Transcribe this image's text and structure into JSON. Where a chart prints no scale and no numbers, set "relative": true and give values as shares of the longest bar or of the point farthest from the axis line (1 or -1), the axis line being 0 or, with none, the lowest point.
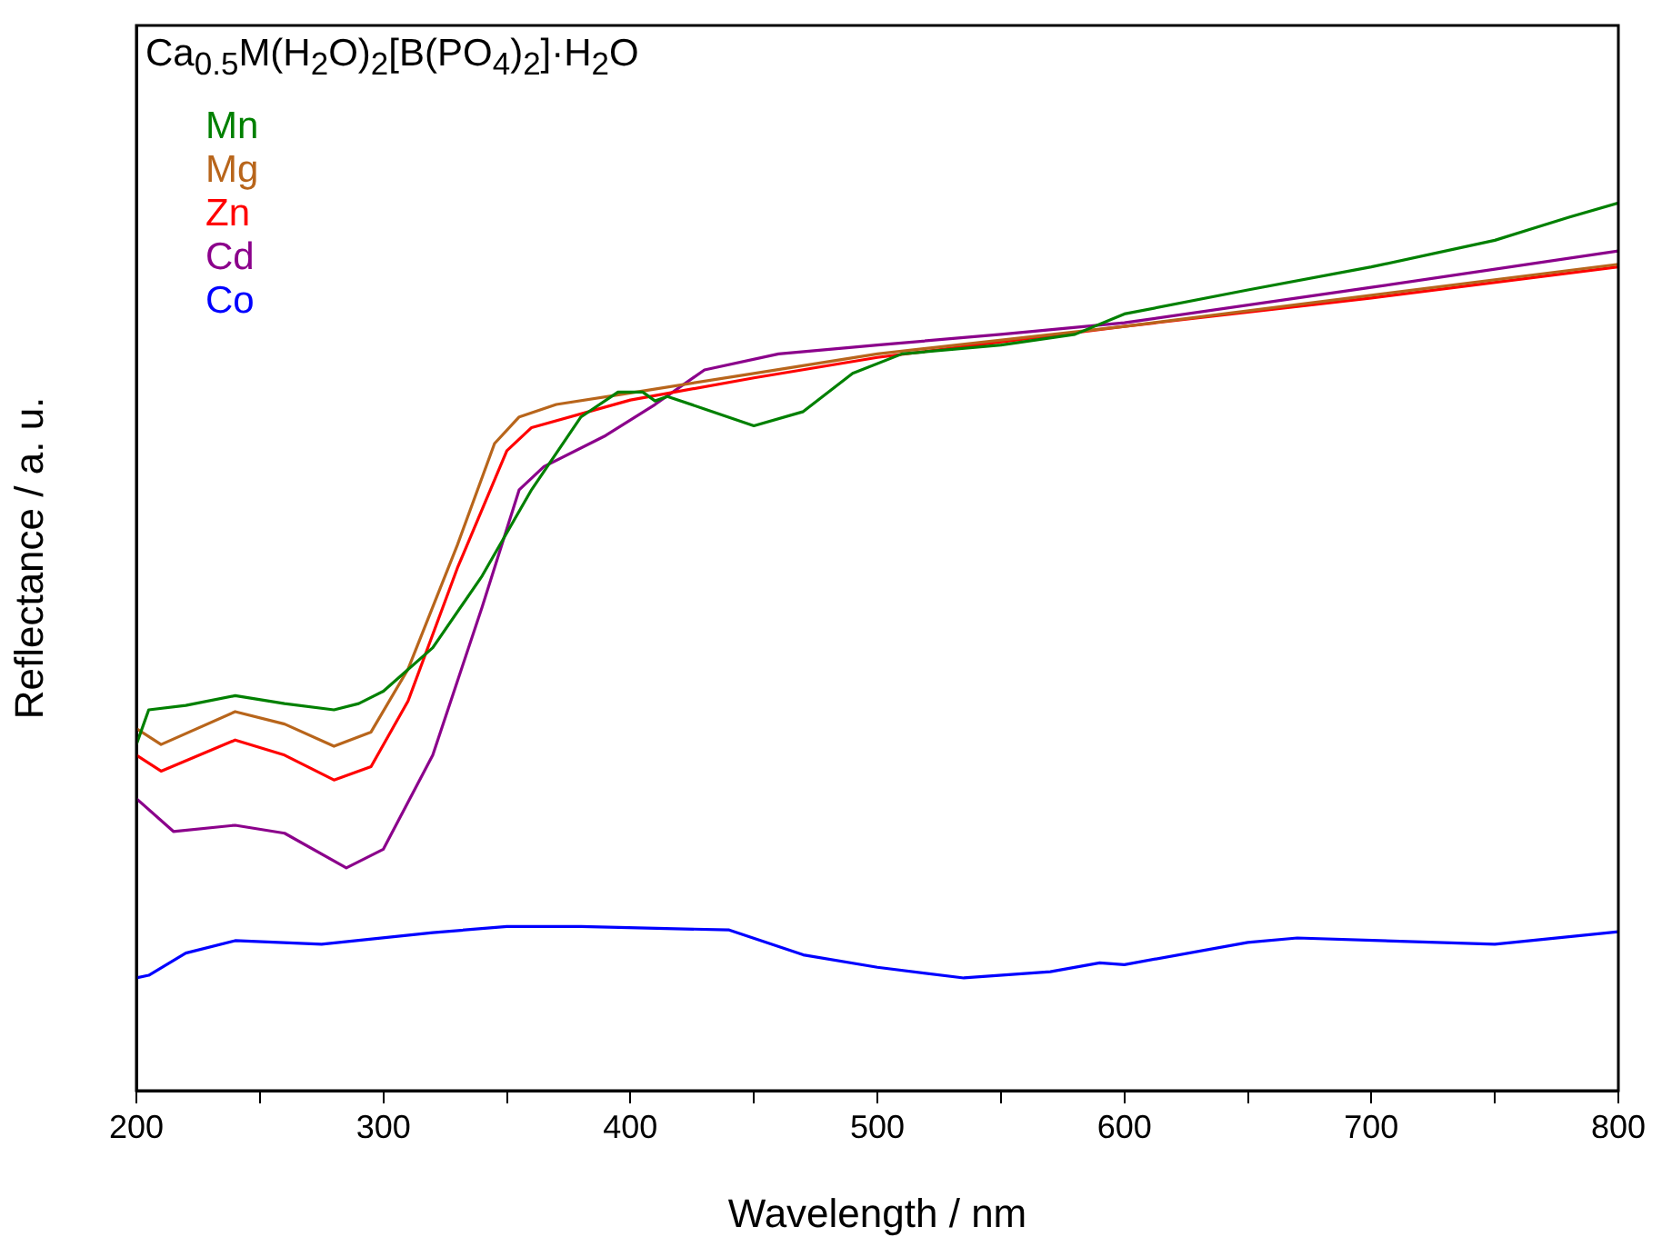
{
  "chart_data": {
    "type": "line",
    "title": "Ca$_{0.5}$M(H$_{2}$O)$_{2}$[B(PO$_{4}$)$_{2}$]·H$_{2}$O",
    "xlabel": "Wavelength / nm",
    "ylabel": "Reflectance / a. u.",
    "relative": true,
    "xlim": [
      200,
      800
    ],
    "xticks": [
      200,
      {
        "value": 250,
        "label": null
      },
      300,
      {
        "value": 350,
        "label": null
      },
      400,
      {
        "value": 450,
        "label": null
      },
      500,
      {
        "value": 550,
        "label": null
      },
      600,
      {
        "value": 650,
        "label": null
      },
      700,
      {
        "value": 750,
        "label": null
      },
      800
    ],
    "tick_labels": "x",
    "grid": false,
    "legend": "top left",
    "marker": "none",
    "line_style": "solid",
    "series": [
      {
        "name": "Mn",
        "color": "#008000",
        "x": [
          200,
          205,
          220,
          240,
          260,
          280,
          290,
          300,
          320,
          340,
          360,
          380,
          395,
          405,
          410,
          415,
          430,
          450,
          470,
          490,
          510,
          550,
          580,
          600,
          650,
          700,
          750,
          780,
          800
        ],
        "values": [
          0.39,
          0.429,
          0.434,
          0.445,
          0.436,
          0.429,
          0.436,
          0.45,
          0.499,
          0.58,
          0.677,
          0.759,
          0.787,
          0.787,
          0.777,
          0.782,
          0.768,
          0.749,
          0.765,
          0.808,
          0.83,
          0.84,
          0.852,
          0.875,
          0.902,
          0.928,
          0.958,
          0.984,
          1.0
        ]
      },
      {
        "name": "Mg",
        "color": "#b8651b",
        "x": [
          200,
          210,
          240,
          260,
          280,
          295,
          310,
          330,
          345,
          355,
          370,
          400,
          450,
          500,
          600,
          700,
          800
        ],
        "values": [
          0.408,
          0.39,
          0.427,
          0.413,
          0.388,
          0.404,
          0.475,
          0.615,
          0.729,
          0.759,
          0.773,
          0.786,
          0.808,
          0.83,
          0.861,
          0.896,
          0.931
        ]
      },
      {
        "name": "Zn",
        "color": "#ff0000",
        "x": [
          200,
          210,
          240,
          260,
          280,
          295,
          310,
          330,
          350,
          360,
          400,
          450,
          500,
          600,
          700,
          800
        ],
        "values": [
          0.378,
          0.36,
          0.395,
          0.378,
          0.35,
          0.365,
          0.439,
          0.589,
          0.721,
          0.747,
          0.778,
          0.803,
          0.826,
          0.861,
          0.893,
          0.928
        ]
      },
      {
        "name": "Cd",
        "color": "#8b008b",
        "x": [
          200,
          215,
          240,
          260,
          285,
          300,
          320,
          340,
          355,
          365,
          390,
          410,
          430,
          460,
          500,
          550,
          600,
          700,
          800
        ],
        "values": [
          0.329,
          0.292,
          0.299,
          0.29,
          0.251,
          0.272,
          0.378,
          0.545,
          0.677,
          0.703,
          0.738,
          0.773,
          0.812,
          0.83,
          0.84,
          0.852,
          0.865,
          0.905,
          0.946
        ]
      },
      {
        "name": "Co",
        "color": "#0000ff",
        "x": [
          200,
          205,
          220,
          240,
          275,
          320,
          350,
          380,
          440,
          470,
          500,
          535,
          570,
          590,
          600,
          650,
          670,
          750,
          800
        ],
        "values": [
          0.127,
          0.13,
          0.155,
          0.169,
          0.165,
          0.178,
          0.185,
          0.185,
          0.181,
          0.153,
          0.139,
          0.127,
          0.134,
          0.144,
          0.142,
          0.167,
          0.172,
          0.165,
          0.179
        ]
      }
    ]
  }
}
